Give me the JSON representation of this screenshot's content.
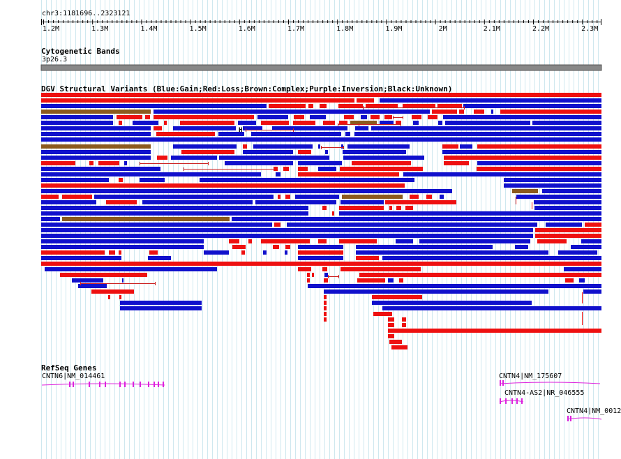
{
  "ruler": {
    "location_label": "chr3:1181696..2323121",
    "ticks": [
      "1.2M",
      "1.3M",
      "1.4M",
      "1.5M",
      "1.6M",
      "1.7M",
      "1.8M",
      "1.9M",
      "2M",
      "2.1M",
      "2.2M",
      "2.3M"
    ]
  },
  "cyto": {
    "title": "Cytogenetic Bands",
    "band": "3p26.3"
  },
  "dgv": {
    "title": "DGV Structural Variants (Blue:Gain;Red:Loss;Brown:Complex;Purple:Inversion;Black:Unknown)",
    "colors": {
      "gain": "#1010cc",
      "loss": "#ee1010",
      "complex": "#8b5a1e",
      "line": "#cc2222"
    }
  },
  "genes": {
    "title": "RefSeq Genes",
    "color": "#dd22dd",
    "items": [
      {
        "label": "CNTN6|NM_014461"
      },
      {
        "label": "CNTN4|NM_175607"
      },
      {
        "label": "CNTN4-AS2|NR_046555"
      },
      {
        "label": "CNTN4|NM_0012"
      }
    ]
  }
}
